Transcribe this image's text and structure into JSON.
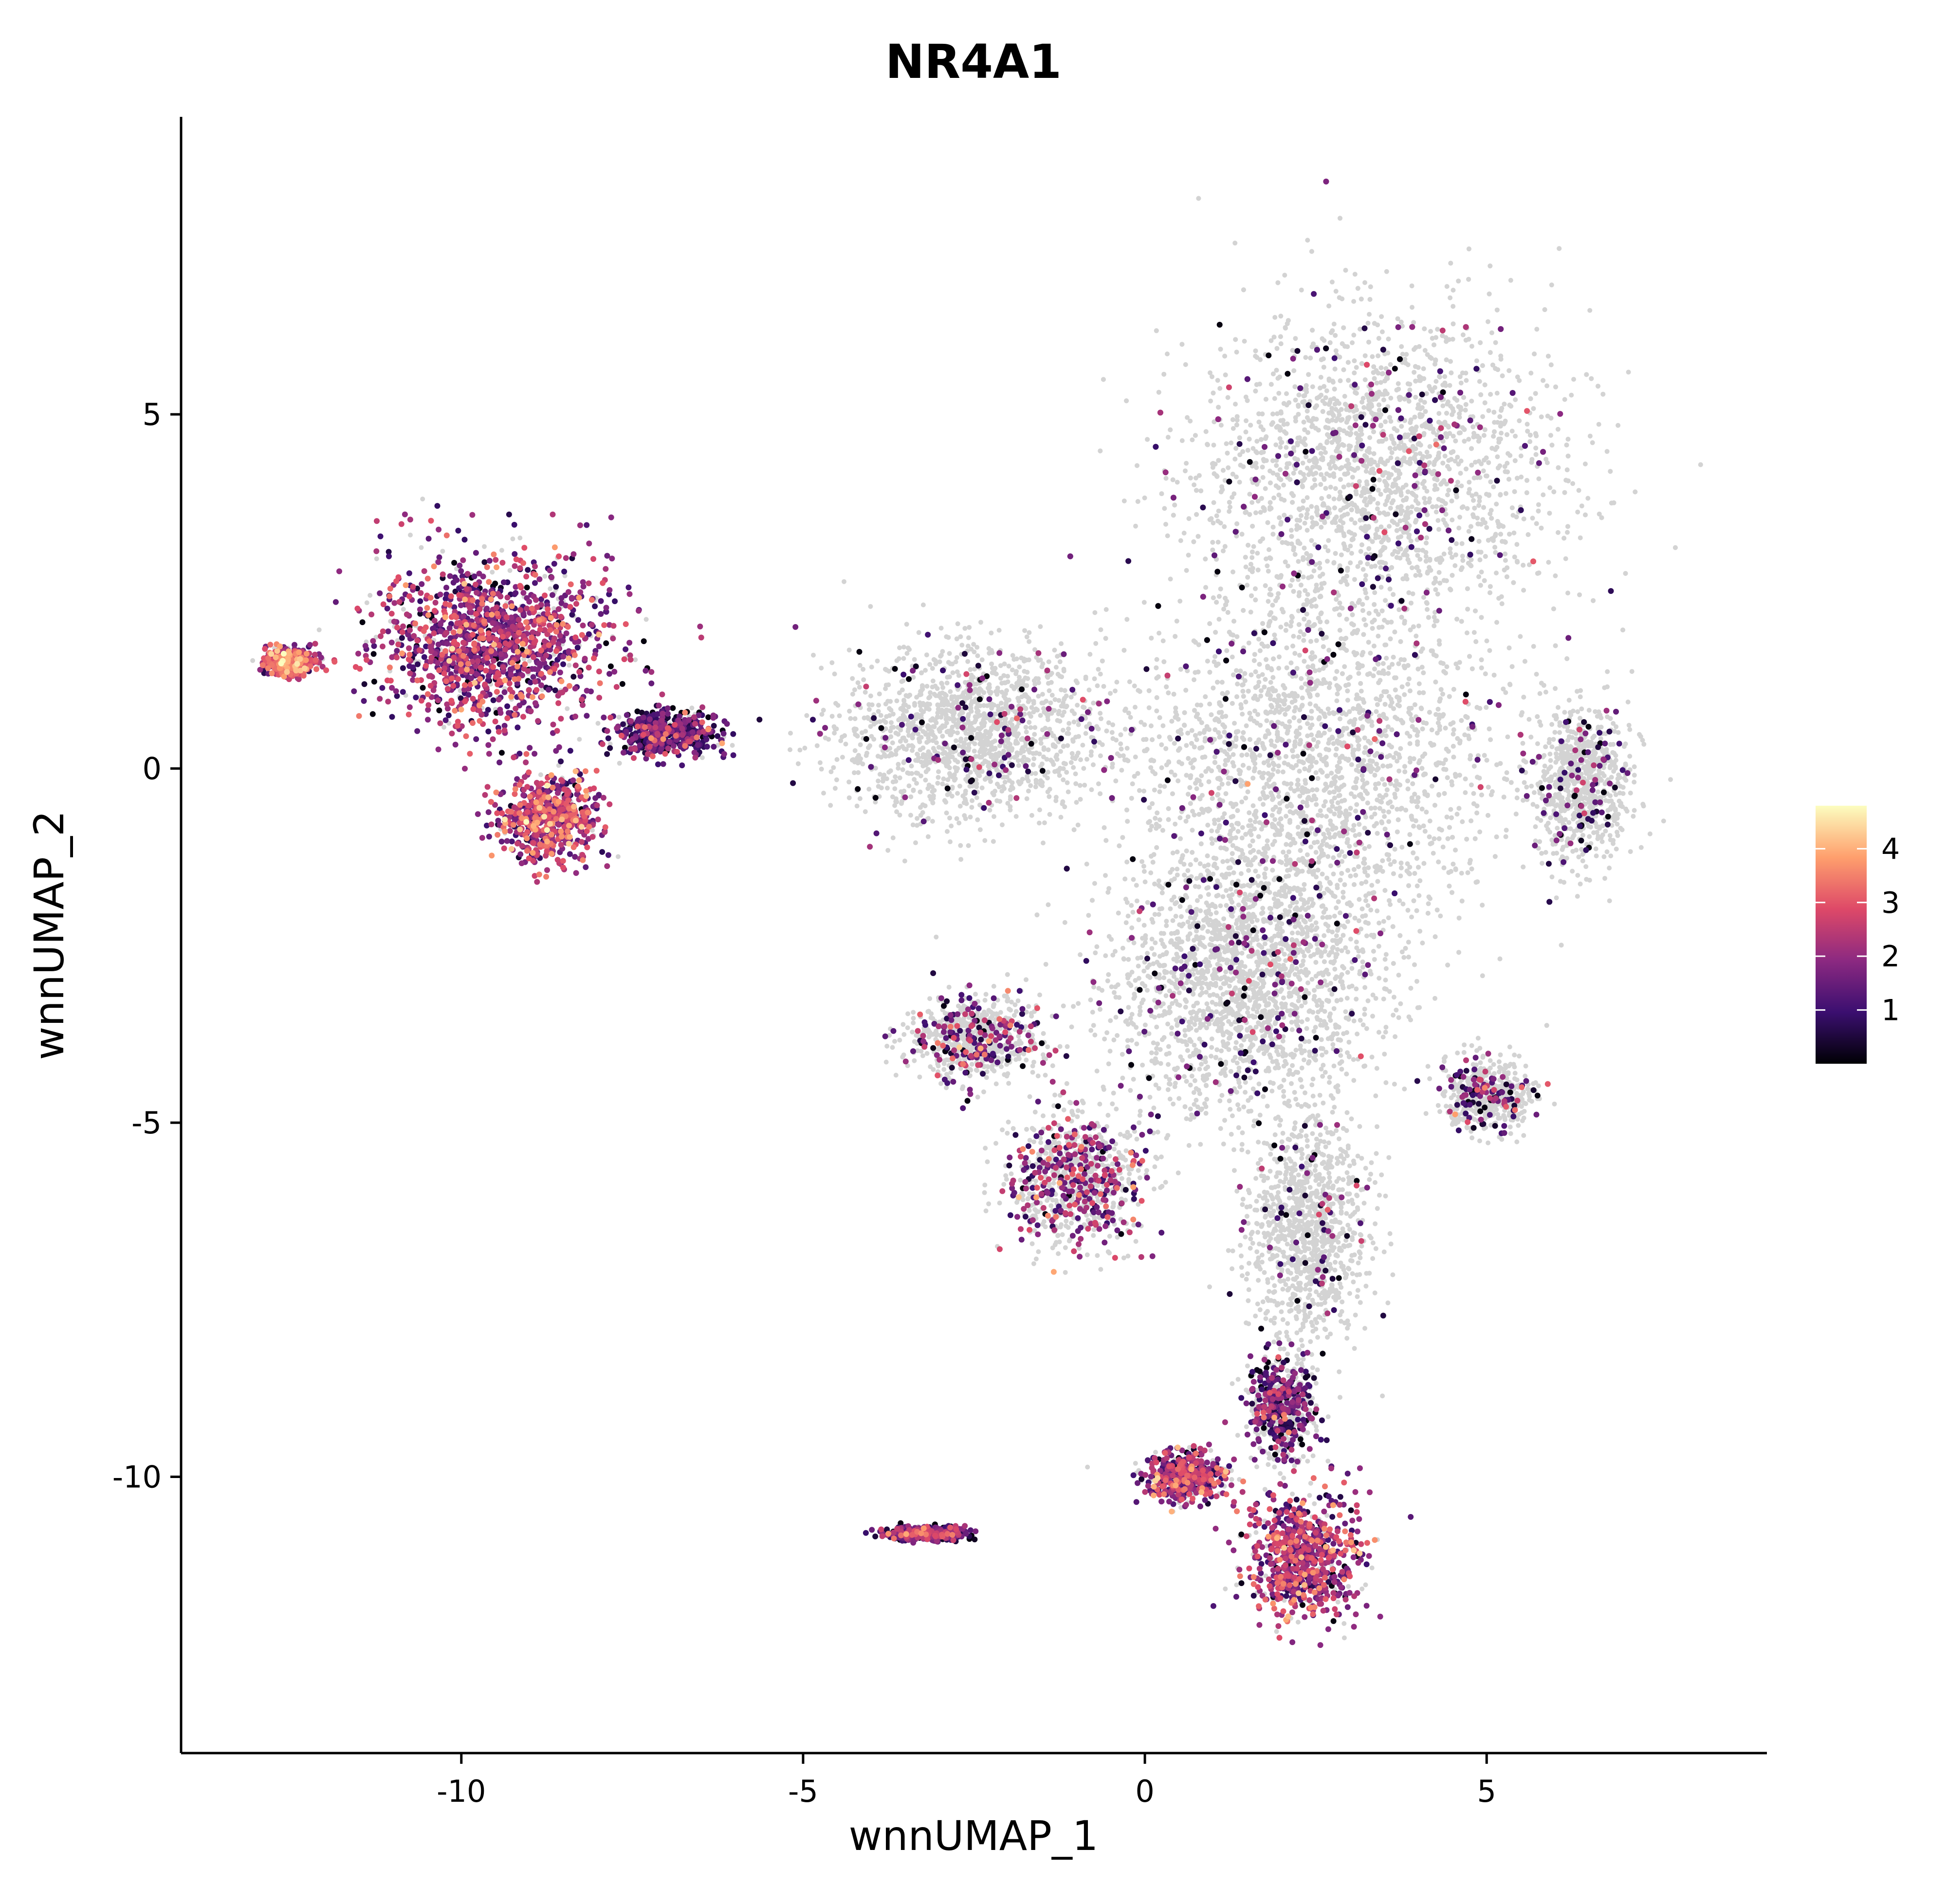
{
  "chart_data": {
    "type": "scatter",
    "title": "NR4A1",
    "xlabel": "wnnUMAP_1",
    "ylabel": "wnnUMAP_2",
    "xlim": [
      -14.1,
      9.1
    ],
    "ylim": [
      -13.9,
      9.2
    ],
    "x_ticks": [
      -10,
      -5,
      0,
      5
    ],
    "x_tick_labels": [
      "-10",
      "-5",
      "0",
      "5"
    ],
    "y_ticks": [
      -10,
      -5,
      0,
      5
    ],
    "y_tick_labels": [
      "-10",
      "-5",
      "0",
      "5"
    ],
    "grid": false,
    "legend": {
      "placement": "right",
      "kind": "colorbar",
      "ticks": [
        1,
        2,
        3,
        4
      ],
      "tick_labels": [
        "1",
        "2",
        "3",
        "4"
      ],
      "range": [
        0,
        4.8
      ],
      "colormap": [
        "#000004",
        "#3b0f70",
        "#8c2981",
        "#de4968",
        "#fe9f6d",
        "#fcfdbf"
      ]
    },
    "zero_expression_color": "#d3d3d3",
    "clusters": [
      {
        "center": [
          -9.5,
          1.8
        ],
        "spread": [
          1.4,
          1.0
        ],
        "expression_level": 1.9,
        "expressing_fraction": 0.9
      },
      {
        "center": [
          -8.7,
          -0.7
        ],
        "spread": [
          0.6,
          0.5
        ],
        "expression_level": 2.2,
        "expressing_fraction": 0.9
      },
      {
        "center": [
          -12.5,
          1.5
        ],
        "spread": [
          0.3,
          0.15
        ],
        "expression_level": 2.5,
        "expressing_fraction": 0.9
      },
      {
        "center": [
          -7.0,
          0.5
        ],
        "spread": [
          0.6,
          0.25
        ],
        "expression_level": 1.2,
        "expressing_fraction": 0.8
      },
      {
        "center": [
          -3.2,
          -10.8
        ],
        "spread": [
          0.5,
          0.08
        ],
        "expression_level": 1.3,
        "expressing_fraction": 0.9
      },
      {
        "center": [
          3.4,
          4.2
        ],
        "spread": [
          2.2,
          1.8
        ],
        "expression_level": 1.3,
        "expressing_fraction": 0.08
      },
      {
        "center": [
          -2.5,
          0.5
        ],
        "spread": [
          1.6,
          1.0
        ],
        "expression_level": 1.2,
        "expressing_fraction": 0.07
      },
      {
        "center": [
          2.5,
          0.0
        ],
        "spread": [
          2.2,
          2.0
        ],
        "expression_level": 1.2,
        "expressing_fraction": 0.06
      },
      {
        "center": [
          6.4,
          -0.2
        ],
        "spread": [
          0.6,
          0.9
        ],
        "expression_level": 1.1,
        "expressing_fraction": 0.08
      },
      {
        "center": [
          1.5,
          -3.0
        ],
        "spread": [
          1.6,
          1.5
        ],
        "expression_level": 1.2,
        "expressing_fraction": 0.08
      },
      {
        "center": [
          -1.0,
          -5.8
        ],
        "spread": [
          0.8,
          0.8
        ],
        "expression_level": 1.8,
        "expressing_fraction": 0.35
      },
      {
        "center": [
          -2.5,
          -3.8
        ],
        "spread": [
          0.8,
          0.5
        ],
        "expression_level": 1.7,
        "expressing_fraction": 0.25
      },
      {
        "center": [
          5.0,
          -4.6
        ],
        "spread": [
          0.5,
          0.4
        ],
        "expression_level": 1.4,
        "expressing_fraction": 0.2
      },
      {
        "center": [
          2.4,
          -6.5
        ],
        "spread": [
          0.7,
          1.3
        ],
        "expression_level": 1.1,
        "expressing_fraction": 0.06
      },
      {
        "center": [
          2.3,
          -11.1
        ],
        "spread": [
          0.7,
          0.7
        ],
        "expression_level": 2.0,
        "expressing_fraction": 0.85
      },
      {
        "center": [
          0.6,
          -10.0
        ],
        "spread": [
          0.5,
          0.3
        ],
        "expression_level": 1.9,
        "expressing_fraction": 0.75
      },
      {
        "center": [
          2.0,
          -9.0
        ],
        "spread": [
          0.4,
          0.6
        ],
        "expression_level": 1.3,
        "expressing_fraction": 0.5
      }
    ]
  }
}
